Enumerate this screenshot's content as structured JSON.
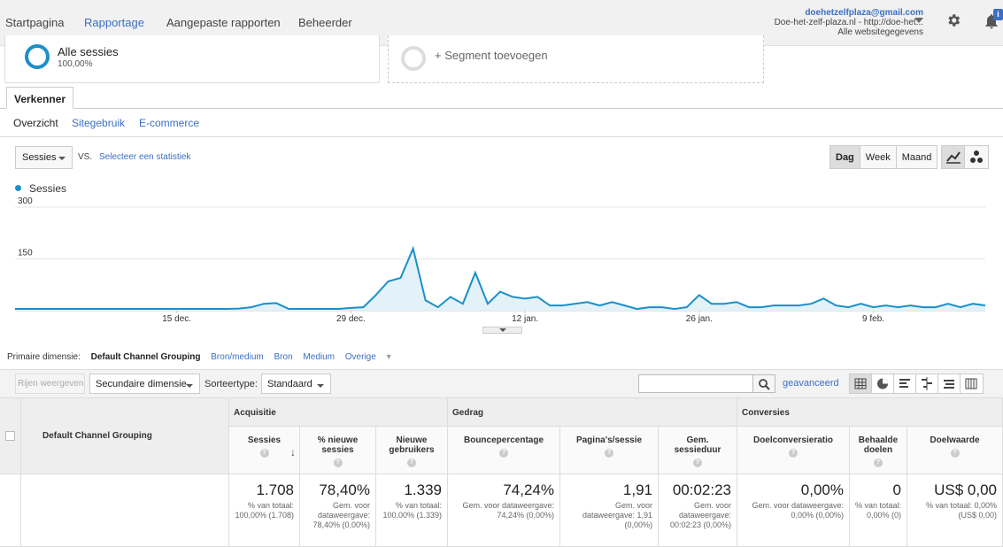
{
  "nav": {
    "items": [
      "Startpagina",
      "Rapportage",
      "Aangepaste rapporten",
      "Beheerder"
    ],
    "active": "Rapportage"
  },
  "account": {
    "email": "doehetzelfplaza@gmail.com",
    "property": "Doe-het-zelf-plaza.nl - http://doe-het...",
    "view": "Alle websitegegevens",
    "notification_badge": "i"
  },
  "segments": {
    "active_name": "Alle sessies",
    "active_pct": "100,00%",
    "add_label": "+ Segment toevoegen"
  },
  "explorer": {
    "tab": "Verkenner",
    "subtabs": [
      "Overzicht",
      "Sitegebruik",
      "E-commerce"
    ]
  },
  "chart_controls": {
    "metric": "Sessies",
    "vs": "VS.",
    "select_stat": "Selecteer een statistiek",
    "periods": [
      "Dag",
      "Week",
      "Maand"
    ],
    "selected_period": "Dag"
  },
  "chart_data": {
    "type": "area",
    "series": [
      {
        "name": "Sessies",
        "color": "#1a90c8",
        "values": [
          5,
          5,
          5,
          5,
          5,
          5,
          5,
          5,
          5,
          5,
          5,
          5,
          5,
          5,
          5,
          5,
          5,
          5,
          6,
          10,
          20,
          22,
          5,
          5,
          5,
          5,
          5,
          8,
          10,
          45,
          85,
          95,
          180,
          30,
          10,
          40,
          20,
          110,
          20,
          55,
          40,
          35,
          40,
          15,
          15,
          20,
          25,
          15,
          25,
          15,
          5,
          10,
          10,
          5,
          10,
          45,
          20,
          20,
          25,
          10,
          10,
          15,
          15,
          15,
          20,
          35,
          15,
          10,
          20,
          10,
          15,
          10,
          15,
          10,
          10,
          20,
          10,
          20,
          15
        ]
      }
    ],
    "x_tick_labels": [
      "15 dec.",
      "29 dec.",
      "12 jan.",
      "26 jan.",
      "9 feb."
    ],
    "y_tick_labels": [
      "300",
      "150"
    ],
    "ylim": [
      0,
      300
    ],
    "grid": true
  },
  "dimensions": {
    "label": "Primaire dimensie:",
    "current": "Default Channel Grouping",
    "others": [
      "Bron/medium",
      "Bron",
      "Medium",
      "Overige"
    ]
  },
  "toolbar": {
    "rows_btn": "Rijen weergeven",
    "secondary": "Secundaire dimensie",
    "sort_label": "Sorteertype:",
    "sort_value": "Standaard",
    "advanced": "geavanceerd"
  },
  "table": {
    "dim_header": "Default Channel Grouping",
    "groups": [
      "Acquisitie",
      "Gedrag",
      "Conversies"
    ],
    "columns": [
      {
        "label": "Sessies",
        "value": "1.708",
        "sub": "% van totaal: 100,00% (1.708)"
      },
      {
        "label": "% nieuwe sessies",
        "value": "78,40%",
        "sub": "Gem. voor dataweergave: 78,40% (0,00%)"
      },
      {
        "label": "Nieuwe gebruikers",
        "value": "1.339",
        "sub": "% van totaal: 100,00% (1.339)"
      },
      {
        "label": "Bouncepercentage",
        "value": "74,24%",
        "sub": "Gem. voor dataweergave: 74,24% (0,00%)"
      },
      {
        "label": "Pagina's/sessie",
        "value": "1,91",
        "sub": "Gem. voor dataweergave: 1,91 (0,00%)"
      },
      {
        "label": "Gem. sessieduur",
        "value": "00:02:23",
        "sub": "Gem. voor dataweergave: 00:02:23 (0,00%)"
      },
      {
        "label": "Doelconversieratio",
        "value": "0,00%",
        "sub": "Gem. voor dataweergave: 0,00% (0,00%)"
      },
      {
        "label": "Behaalde doelen",
        "value": "0",
        "sub": "% van totaal: 0,00% (0)"
      },
      {
        "label": "Doelwaarde",
        "value": "US$ 0,00",
        "sub": "% van totaal: 0,00% (US$ 0,00)"
      }
    ]
  }
}
